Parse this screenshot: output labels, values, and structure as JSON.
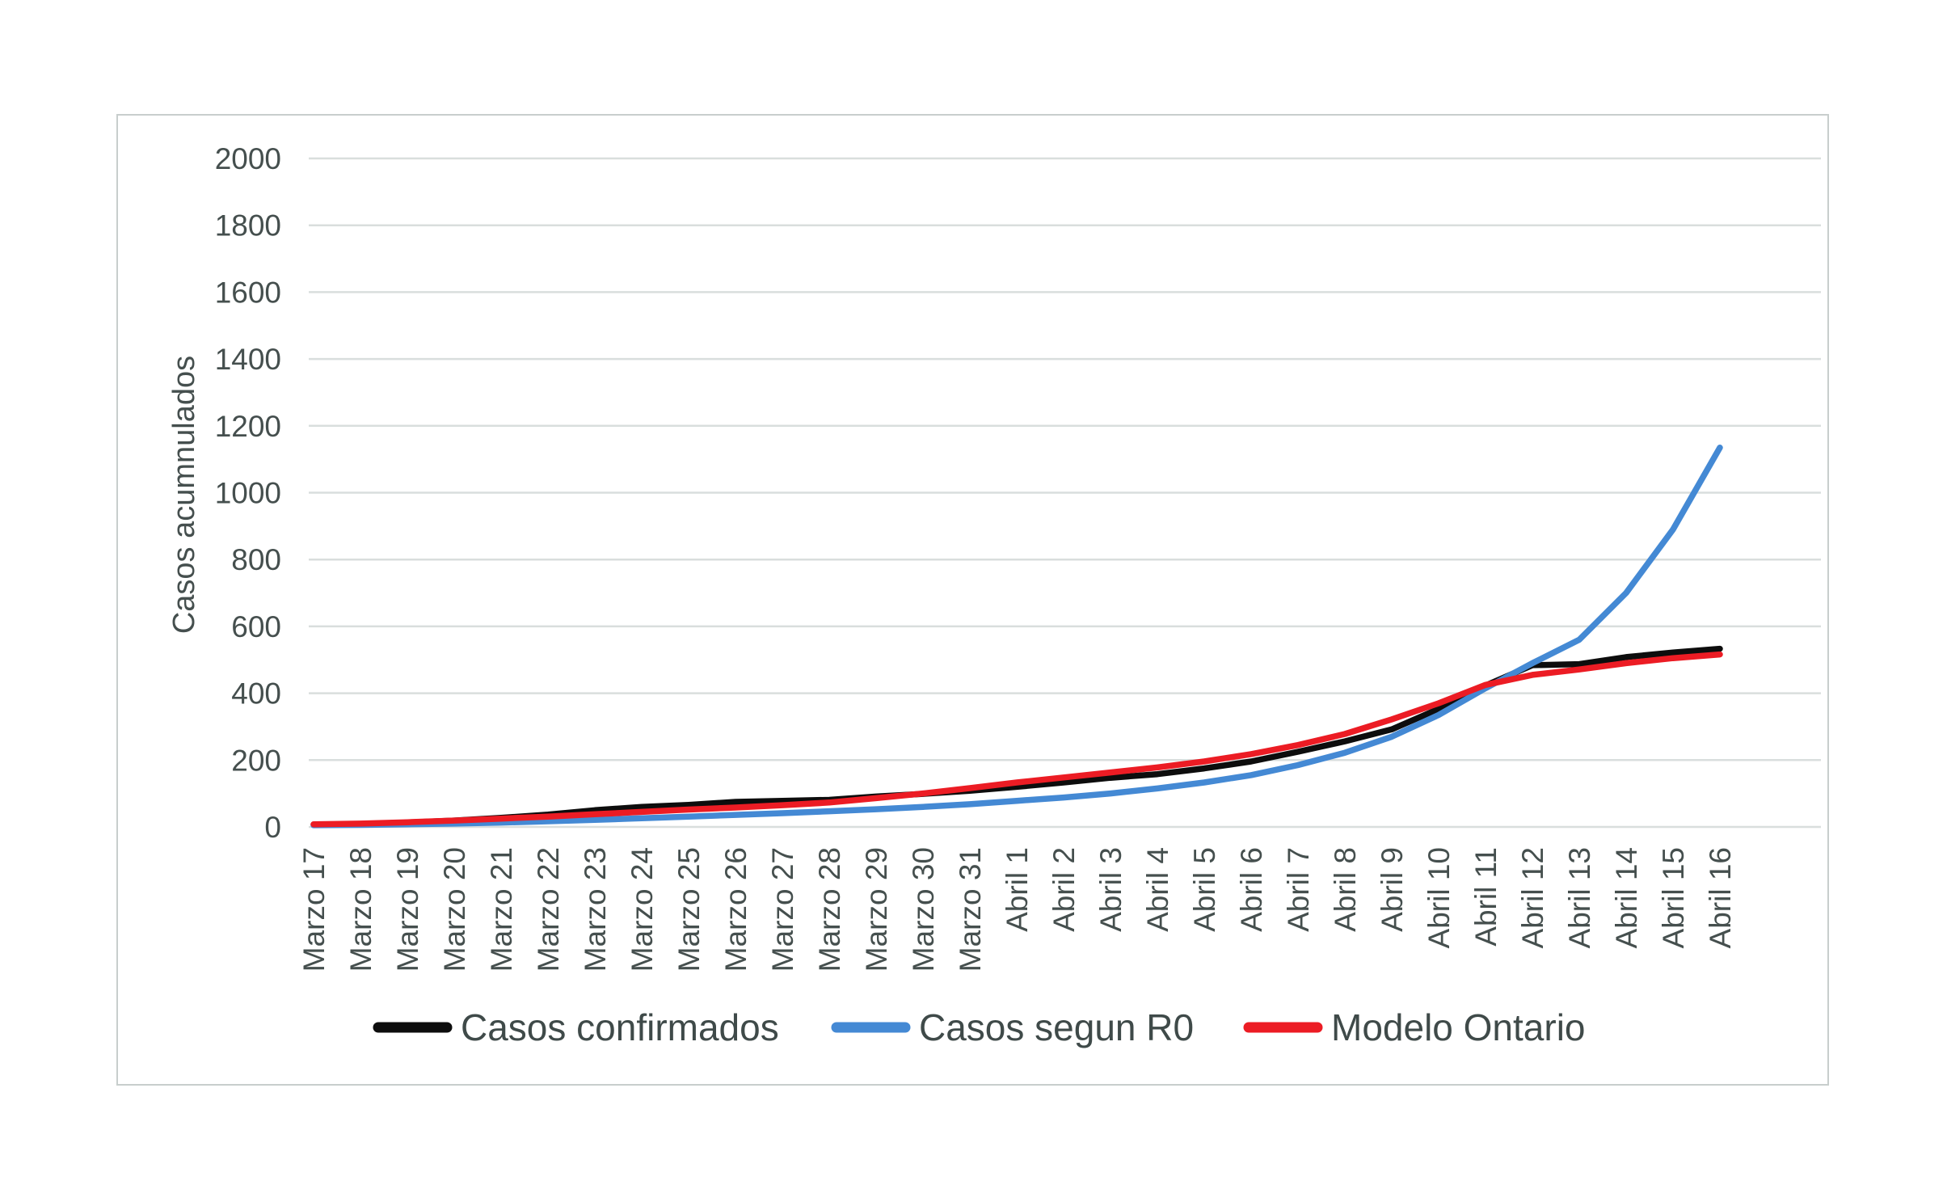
{
  "figure": {
    "background_color": "#ffffff",
    "border_color": "#c8cecd"
  },
  "chart_data": {
    "type": "line",
    "title": "",
    "xlabel": "",
    "ylabel": "Casos acumnulados",
    "ylim": [
      0,
      2000
    ],
    "ytick_step": 200,
    "grid": "horizontal",
    "gridline_color": "#d9dedd",
    "axis_text_color": "#454f4e",
    "legend_position": "bottom",
    "legend_text_color": "#3f4a49",
    "categories": [
      "Marzo 17",
      "Marzo 18",
      "Marzo 19",
      "Marzo 20",
      "Marzo 21",
      "Marzo 22",
      "Marzo 23",
      "Marzo 24",
      "Marzo 25",
      "Marzo 26",
      "Marzo 27",
      "Marzo 28",
      "Marzo 29",
      "Marzo 30",
      "Marzo 31",
      "Abril 1",
      "Abril 2",
      "Abril 3",
      "Abril 4",
      "Abril 5",
      "Abril 6",
      "Abril 7",
      "Abril 8",
      "Abril 9",
      "Abril 10",
      "Abril 11",
      "Abril 12",
      "Abril 13",
      "Abril 14",
      "Abril 15",
      "Abril 16"
    ],
    "series": [
      {
        "name": "Casos confirmados",
        "color": "#0d0d0d",
        "values": [
          7,
          9,
          13,
          19,
          27,
          37,
          50,
          60,
          66,
          75,
          78,
          81,
          91,
          99,
          108,
          120,
          133,
          147,
          158,
          175,
          196,
          225,
          256,
          292,
          353,
          423,
          484,
          487,
          508,
          522,
          533
        ]
      },
      {
        "name": "Casos segun R0",
        "color": "#4489d4",
        "values": [
          5,
          6,
          8,
          10,
          13,
          17,
          21,
          26,
          31,
          36,
          41,
          47,
          53,
          60,
          68,
          78,
          88,
          100,
          115,
          133,
          155,
          185,
          222,
          270,
          335,
          415,
          490,
          560,
          700,
          890,
          1135
        ]
      },
      {
        "name": "Modelo Ontario",
        "color": "#ec1c24",
        "values": [
          8,
          10,
          14,
          19,
          25,
          31,
          38,
          45,
          52,
          58,
          65,
          73,
          86,
          100,
          116,
          133,
          148,
          163,
          178,
          196,
          218,
          245,
          278,
          322,
          370,
          425,
          455,
          471,
          490,
          505,
          516
        ]
      }
    ]
  }
}
